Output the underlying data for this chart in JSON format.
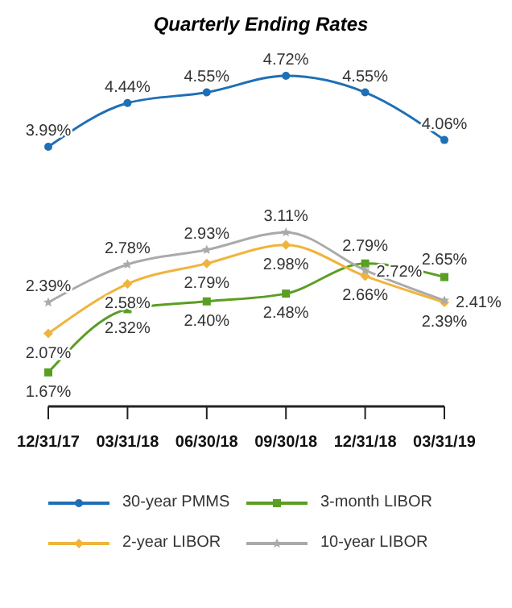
{
  "chart_data": {
    "type": "line",
    "title": "Quarterly Ending Rates",
    "categories": [
      "12/31/17",
      "03/31/18",
      "06/30/18",
      "09/30/18",
      "12/31/18",
      "03/31/19"
    ],
    "series": [
      {
        "name": "30-year PMMS",
        "color": "#1f6fb5",
        "marker": "circle",
        "values": [
          3.99,
          4.44,
          4.55,
          4.72,
          4.55,
          4.06
        ],
        "value_labels": [
          "3.99%",
          "4.44%",
          "4.55%",
          "4.72%",
          "4.55%",
          "4.06%"
        ]
      },
      {
        "name": "3-month LIBOR",
        "color": "#5a9e22",
        "marker": "square",
        "values": [
          1.67,
          2.32,
          2.4,
          2.48,
          2.79,
          2.65
        ],
        "value_labels": [
          "1.67%",
          "2.32%",
          "2.40%",
          "2.48%",
          "2.79%",
          "2.65%"
        ]
      },
      {
        "name": "2-year LIBOR",
        "color": "#f0b43c",
        "marker": "diamond",
        "values": [
          2.07,
          2.58,
          2.79,
          2.98,
          2.66,
          2.39
        ],
        "value_labels": [
          "2.07%",
          "2.58%",
          "2.79%",
          "2.98%",
          "2.66%",
          "2.39%"
        ]
      },
      {
        "name": "10-year LIBOR",
        "color": "#aaaaaa",
        "marker": "star",
        "values": [
          2.39,
          2.78,
          2.93,
          3.11,
          2.72,
          2.41
        ],
        "value_labels": [
          "2.39%",
          "2.78%",
          "2.93%",
          "3.11%",
          "2.72%",
          "2.41%"
        ]
      }
    ],
    "legend": "bottom",
    "grid": false
  }
}
